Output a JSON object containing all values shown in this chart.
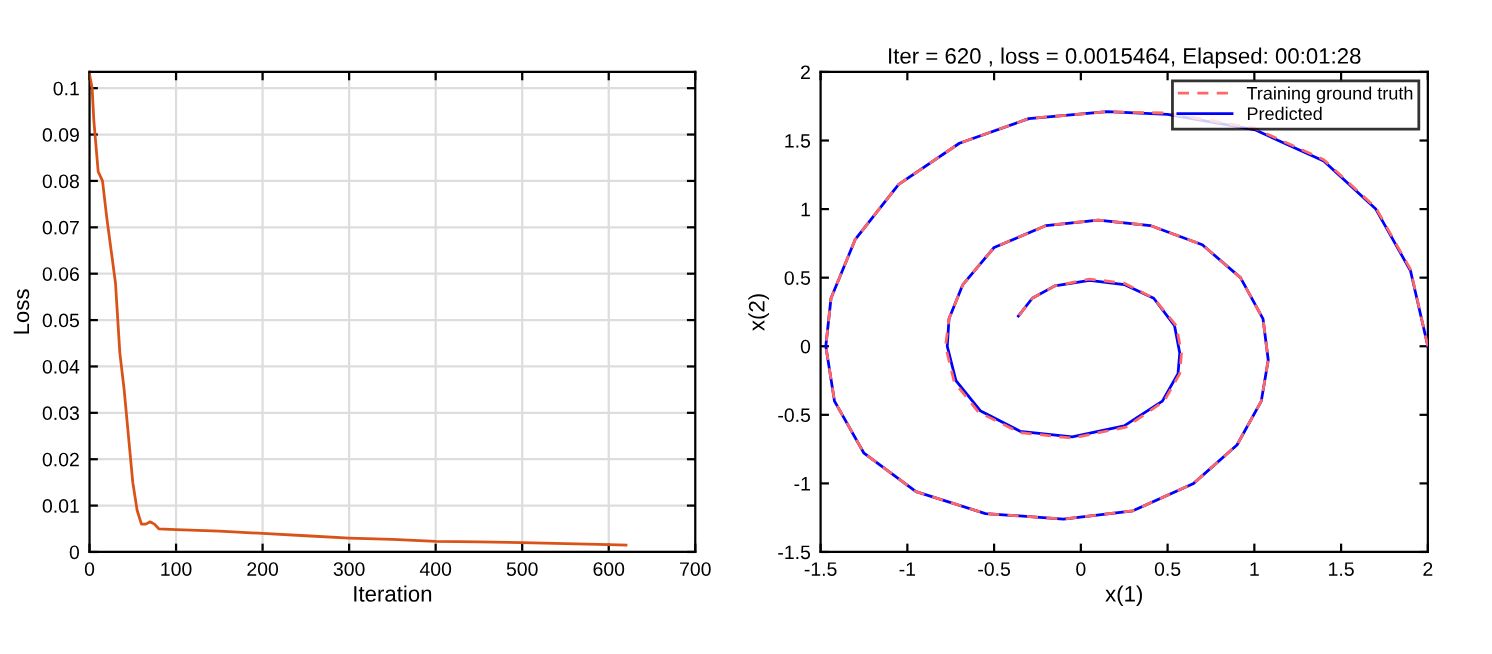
{
  "chart_data": [
    {
      "type": "line",
      "xlabel": "Iteration",
      "ylabel": "Loss",
      "xlim": [
        0,
        700
      ],
      "xticks": [
        0,
        100,
        200,
        300,
        400,
        500,
        600,
        700
      ],
      "ylim": [
        0,
        0.1035
      ],
      "yticks": [
        0,
        0.01,
        0.02,
        0.03,
        0.04,
        0.05,
        0.06,
        0.07,
        0.08,
        0.09,
        0.1
      ],
      "grid": true,
      "series": [
        {
          "color": "#d95319",
          "x": [
            0,
            3,
            5,
            10,
            15,
            20,
            30,
            35,
            40,
            45,
            50,
            55,
            60,
            65,
            70,
            75,
            80,
            100,
            150,
            200,
            250,
            300,
            350,
            400,
            450,
            500,
            550,
            600,
            620
          ],
          "values": [
            0.103,
            0.1,
            0.093,
            0.082,
            0.08,
            0.072,
            0.058,
            0.043,
            0.035,
            0.025,
            0.015,
            0.009,
            0.006,
            0.006,
            0.0065,
            0.006,
            0.005,
            0.0048,
            0.0045,
            0.004,
            0.0035,
            0.003,
            0.0027,
            0.0023,
            0.0022,
            0.002,
            0.0018,
            0.0016,
            0.0015
          ]
        }
      ]
    },
    {
      "type": "line",
      "title": "Iter = 620 , loss = 0.0015464, Elapsed: 00:01:28",
      "xlabel": "x(1)",
      "ylabel": "x(2)",
      "xlim": [
        -1.5,
        2
      ],
      "xticks": [
        -1.5,
        -1,
        -0.5,
        0,
        0.5,
        1,
        1.5,
        2
      ],
      "ylim": [
        -1.5,
        2
      ],
      "yticks": [
        -1.5,
        -1,
        -0.5,
        0,
        0.5,
        1,
        1.5,
        2
      ],
      "legend": "top right",
      "series": [
        {
          "name": "Training ground truth",
          "color": "#ff6666",
          "line_style": "dashed",
          "x": [
            2,
            1.9,
            1.7,
            1.4,
            1.0,
            0.5,
            0.15,
            -0.3,
            -0.7,
            -1.05,
            -1.3,
            -1.44,
            -1.47,
            -1.42,
            -1.25,
            -0.95,
            -0.55,
            -0.1,
            0.3,
            0.65,
            0.9,
            1.04,
            1.08,
            1.05,
            0.92,
            0.7,
            0.4,
            0.1,
            -0.2,
            -0.5,
            -0.68,
            -0.76,
            -0.78,
            -0.73,
            -0.59,
            -0.35,
            -0.05,
            0.26,
            0.48,
            0.57,
            0.58,
            0.55,
            0.42,
            0.25,
            0.05,
            -0.15,
            -0.28,
            -0.36
          ],
          "values": [
            0,
            0.56,
            1.01,
            1.36,
            1.59,
            1.7,
            1.71,
            1.66,
            1.48,
            1.18,
            0.78,
            0.35,
            0,
            -0.4,
            -0.78,
            -1.06,
            -1.22,
            -1.26,
            -1.2,
            -1.0,
            -0.72,
            -0.4,
            -0.1,
            0.2,
            0.5,
            0.74,
            0.88,
            0.92,
            0.88,
            0.72,
            0.45,
            0.2,
            0,
            -0.26,
            -0.48,
            -0.63,
            -0.67,
            -0.59,
            -0.4,
            -0.2,
            -0.05,
            0.15,
            0.35,
            0.46,
            0.49,
            0.44,
            0.35,
            0.22
          ]
        },
        {
          "name": "Predicted",
          "color": "#0000ff",
          "line_style": "solid",
          "x": [
            2,
            1.9,
            1.7,
            1.4,
            1.0,
            0.5,
            0.15,
            -0.3,
            -0.7,
            -1.05,
            -1.3,
            -1.44,
            -1.47,
            -1.42,
            -1.25,
            -0.95,
            -0.55,
            -0.1,
            0.3,
            0.65,
            0.9,
            1.04,
            1.08,
            1.05,
            0.92,
            0.7,
            0.4,
            0.1,
            -0.2,
            -0.5,
            -0.68,
            -0.76,
            -0.77,
            -0.72,
            -0.58,
            -0.35,
            -0.05,
            0.25,
            0.47,
            0.56,
            0.57,
            0.54,
            0.42,
            0.25,
            0.05,
            -0.15,
            -0.28,
            -0.36
          ],
          "values": [
            0,
            0.55,
            1.0,
            1.35,
            1.58,
            1.69,
            1.71,
            1.66,
            1.48,
            1.18,
            0.78,
            0.35,
            0,
            -0.4,
            -0.78,
            -1.06,
            -1.22,
            -1.26,
            -1.2,
            -1.0,
            -0.72,
            -0.4,
            -0.1,
            0.2,
            0.5,
            0.74,
            0.88,
            0.92,
            0.88,
            0.72,
            0.45,
            0.2,
            0,
            -0.25,
            -0.47,
            -0.62,
            -0.66,
            -0.58,
            -0.4,
            -0.2,
            -0.05,
            0.15,
            0.35,
            0.45,
            0.48,
            0.44,
            0.35,
            0.22
          ]
        }
      ]
    }
  ]
}
